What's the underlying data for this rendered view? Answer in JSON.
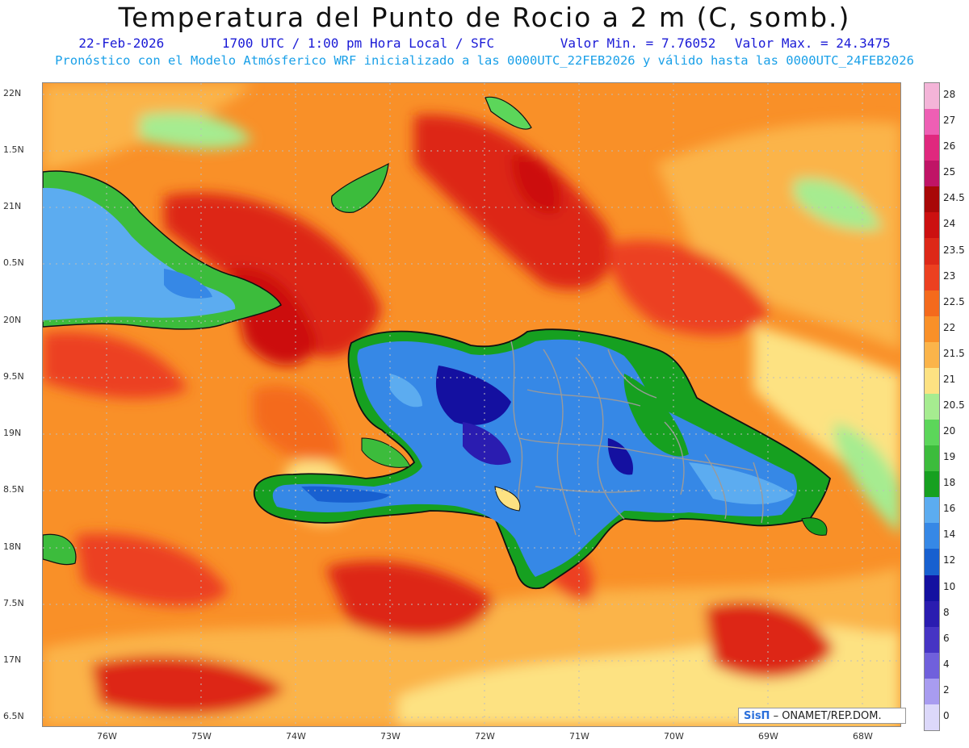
{
  "header": {
    "title": "Temperatura del Punto de Rocio a 2 m (C, somb.)",
    "date": "22-Feb-2026",
    "time": "1700 UTC / 1:00 pm Hora Local / SFC",
    "min": "Valor Min. = 7.76052",
    "max": "Valor Max. = 24.3475",
    "model_note": "Pronóstico con el Modelo Atmósferico WRF inicializado a las 0000UTC_22FEB2026 y válido hasta las  0000UTC_24FEB2026"
  },
  "axes": {
    "lat_labels": [
      "22N",
      "1.5N",
      "21N",
      "0.5N",
      "20N",
      "9.5N",
      "19N",
      "8.5N",
      "18N",
      "7.5N",
      "17N",
      "6.5N"
    ],
    "lon_labels": [
      "76W",
      "75W",
      "74W",
      "73W",
      "72W",
      "71W",
      "70W",
      "69W",
      "68W"
    ]
  },
  "legend": {
    "items": [
      {
        "label": "28",
        "color": "#f4b4d8"
      },
      {
        "label": "27",
        "color": "#ee5fb4"
      },
      {
        "label": "26",
        "color": "#e0287e"
      },
      {
        "label": "25",
        "color": "#c01466"
      },
      {
        "label": "24.5",
        "color": "#a80808"
      },
      {
        "label": "24",
        "color": "#cc1010"
      },
      {
        "label": "23.5",
        "color": "#dd2818"
      },
      {
        "label": "23",
        "color": "#ec4020"
      },
      {
        "label": "22.5",
        "color": "#f46a1c"
      },
      {
        "label": "22",
        "color": "#f99028"
      },
      {
        "label": "21.5",
        "color": "#fbb44a"
      },
      {
        "label": "21",
        "color": "#fde282"
      },
      {
        "label": "20.5",
        "color": "#a6ec90"
      },
      {
        "label": "20",
        "color": "#5cd65a"
      },
      {
        "label": "19",
        "color": "#3cbc3c"
      },
      {
        "label": "18",
        "color": "#16a020"
      },
      {
        "label": "16",
        "color": "#5cacf0"
      },
      {
        "label": "14",
        "color": "#3688e6"
      },
      {
        "label": "12",
        "color": "#1860d0"
      },
      {
        "label": "10",
        "color": "#1410a0"
      },
      {
        "label": "8",
        "color": "#2a1cb0"
      },
      {
        "label": "6",
        "color": "#4634c4"
      },
      {
        "label": "4",
        "color": "#7060dc"
      },
      {
        "label": "2",
        "color": "#a89cf0"
      },
      {
        "label": "0",
        "color": "#dcd8fa"
      }
    ]
  },
  "credit": {
    "brand": "SisΠ",
    "text": " – ONAMET/REP.DOM."
  }
}
